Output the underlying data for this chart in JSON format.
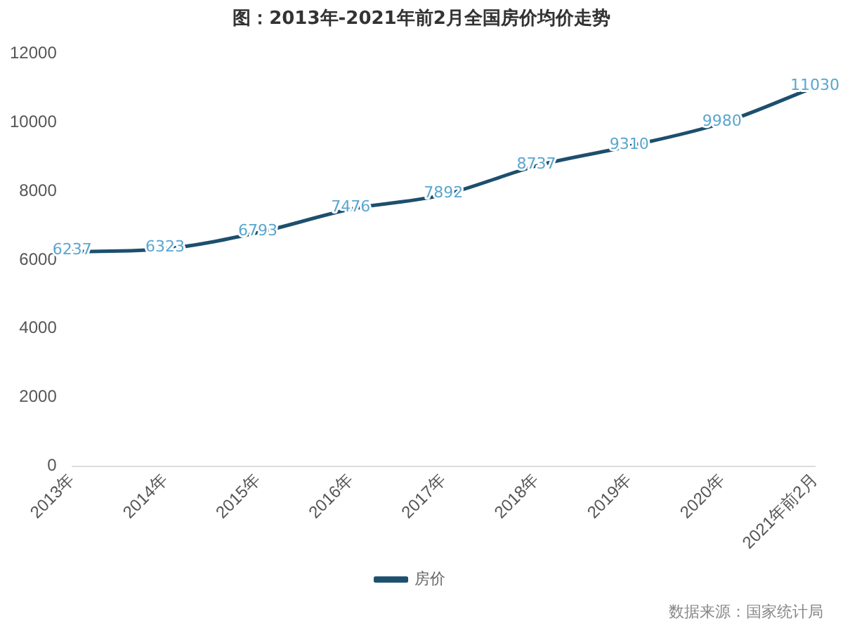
{
  "chart_data": {
    "type": "line",
    "title": "图：2013年-2021年前2月全国房价均价走势",
    "categories": [
      "2013年",
      "2014年",
      "2015年",
      "2016年",
      "2017年",
      "2018年",
      "2019年",
      "2020年",
      "2021年前2月"
    ],
    "series": [
      {
        "name": "房价",
        "color": "#1d4f6e",
        "values": [
          6237,
          6323,
          6793,
          7476,
          7892,
          8737,
          9310,
          9980,
          11030
        ]
      }
    ],
    "ylim": [
      0,
      12000
    ],
    "yticks": [
      0,
      2000,
      4000,
      6000,
      8000,
      10000,
      12000
    ],
    "grid": false,
    "legend": "bottom",
    "marker": "none",
    "line_style": "solid",
    "data_labels": true,
    "annotations": [
      "数据来源：国家统计局"
    ]
  }
}
